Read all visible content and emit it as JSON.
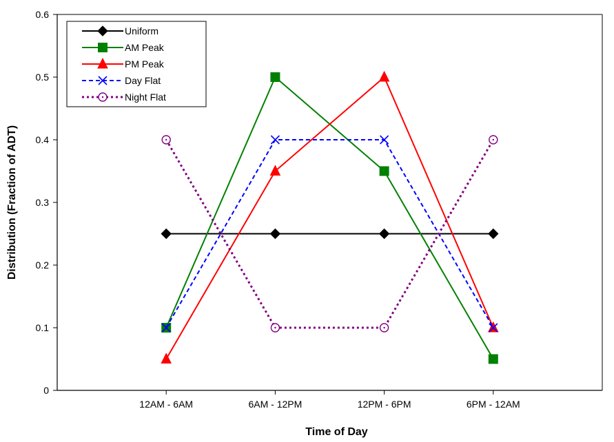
{
  "chart_data": {
    "type": "line",
    "title": "",
    "xlabel": "Time of Day",
    "ylabel": "Distribution (Fraction of ADT)",
    "categories": [
      "12AM - 6AM",
      "6AM - 12PM",
      "12PM - 6PM",
      "6PM - 12AM"
    ],
    "ylim": [
      0,
      0.6
    ],
    "yticks": [
      0,
      0.1,
      0.2,
      0.3,
      0.4,
      0.5,
      0.6
    ],
    "ytick_labels": [
      "0",
      "0.1",
      "0.2",
      "0.3",
      "0.4",
      "0.5",
      "0.6"
    ],
    "grid": false,
    "legend_position": "top-left",
    "series": [
      {
        "name": "Uniform",
        "values": [
          0.25,
          0.25,
          0.25,
          0.25
        ],
        "color": "#000000",
        "dash": "solid",
        "marker": "diamond"
      },
      {
        "name": "AM Peak",
        "values": [
          0.1,
          0.5,
          0.35,
          0.05
        ],
        "color": "#008000",
        "dash": "solid",
        "marker": "square"
      },
      {
        "name": "PM Peak",
        "values": [
          0.05,
          0.35,
          0.5,
          0.1
        ],
        "color": "#ff0000",
        "dash": "solid",
        "marker": "triangle"
      },
      {
        "name": "Day Flat",
        "values": [
          0.1,
          0.4,
          0.4,
          0.1
        ],
        "color": "#0000ff",
        "dash": "dashed",
        "marker": "x"
      },
      {
        "name": "Night Flat",
        "values": [
          0.4,
          0.1,
          0.1,
          0.4
        ],
        "color": "#800080",
        "dash": "dotted",
        "marker": "circle"
      }
    ]
  }
}
